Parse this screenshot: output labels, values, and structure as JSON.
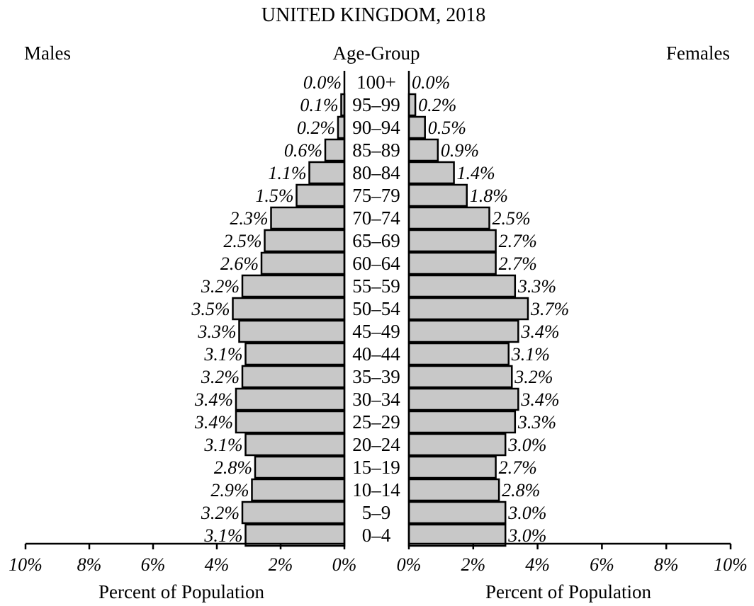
{
  "chart_data": {
    "type": "bar",
    "orientation": "population-pyramid",
    "title": "UNITED KINGDOM, 2018",
    "left_label": "Males",
    "center_label": "Age-Group",
    "right_label": "Females",
    "xlabel_left": "Percent of Population",
    "xlabel_right": "Percent of Population",
    "categories": [
      "100+",
      "95–99",
      "90–94",
      "85–89",
      "80–84",
      "75–79",
      "70–74",
      "65–69",
      "60–64",
      "55–59",
      "50–54",
      "45–49",
      "40–44",
      "35–39",
      "30–34",
      "25–29",
      "20–24",
      "15–19",
      "10–14",
      "5–9",
      "0–4"
    ],
    "series": [
      {
        "name": "Males",
        "values": [
          0.0,
          0.1,
          0.2,
          0.6,
          1.1,
          1.5,
          2.3,
          2.5,
          2.6,
          3.2,
          3.5,
          3.3,
          3.1,
          3.2,
          3.4,
          3.4,
          3.1,
          2.8,
          2.9,
          3.2,
          3.1
        ],
        "labels": [
          "0.0%",
          "0.1%",
          "0.2%",
          "0.6%",
          "1.1%",
          "1.5%",
          "2.3%",
          "2.5%",
          "2.6%",
          "3.2%",
          "3.5%",
          "3.3%",
          "3.1%",
          "3.2%",
          "3.4%",
          "3.4%",
          "3.1%",
          "2.8%",
          "2.9%",
          "3.2%",
          "3.1%"
        ]
      },
      {
        "name": "Females",
        "values": [
          0.0,
          0.2,
          0.5,
          0.9,
          1.4,
          1.8,
          2.5,
          2.7,
          2.7,
          3.3,
          3.7,
          3.4,
          3.1,
          3.2,
          3.4,
          3.3,
          3.0,
          2.7,
          2.8,
          3.0,
          3.0
        ],
        "labels": [
          "0.0%",
          "0.2%",
          "0.5%",
          "0.9%",
          "1.4%",
          "1.8%",
          "2.5%",
          "2.7%",
          "2.7%",
          "3.3%",
          "3.7%",
          "3.4%",
          "3.1%",
          "3.2%",
          "3.4%",
          "3.3%",
          "3.0%",
          "2.7%",
          "2.8%",
          "3.0%",
          "3.0%"
        ]
      }
    ],
    "xlim": [
      0,
      10
    ],
    "ticks": [
      0,
      2,
      4,
      6,
      8,
      10
    ],
    "tick_labels_left": [
      "10%",
      "8%",
      "6%",
      "4%",
      "2%",
      "0%"
    ],
    "tick_labels_right": [
      "0%",
      "2%",
      "4%",
      "6%",
      "8%",
      "10%"
    ],
    "bar_fill": "#c8c8c8",
    "grid": false
  }
}
